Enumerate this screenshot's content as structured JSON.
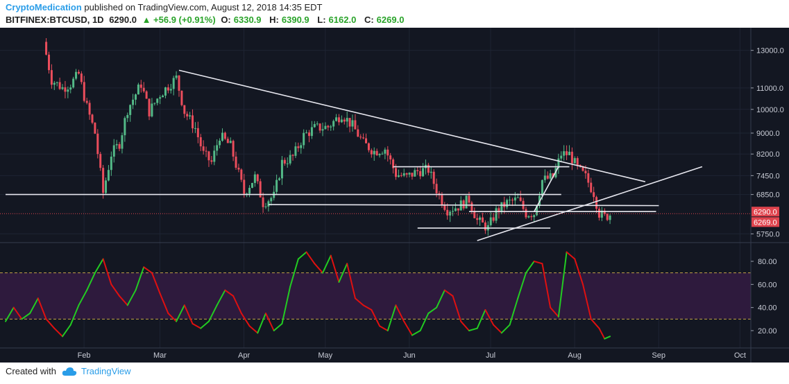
{
  "header": {
    "author": "CryptoMedication",
    "published_text": "published on TradingView.com, August 12, 2018 14:35 EDT",
    "symbol": "BITFINEX:BTCUSD, 1D",
    "last": "6290.0",
    "change": "▲ +56.9 (+0.91%)",
    "o_label": "O:",
    "o_value": "6330.9",
    "h_label": "H:",
    "h_value": "6390.9",
    "l_label": "L:",
    "l_value": "6162.0",
    "c_label": "C:",
    "c_value": "6269.0"
  },
  "footer": {
    "created_with": "Created with",
    "brand": "TradingView",
    "logo_icon": "cloud-logo-icon"
  },
  "colors": {
    "background": "#131722",
    "up": "#53b987",
    "down": "#eb4d5c",
    "trendline": "#e8e8f0",
    "rsi_up": "#22cc22",
    "rsi_down": "#e01010",
    "rsi_band": "#2e1a3d",
    "price_label": "#e0444e"
  },
  "chart_data": [
    {
      "type": "candlestick",
      "title": "BITFINEX:BTCUSD, 1D",
      "x_tick_labels": [
        "Feb",
        "Mar",
        "Apr",
        "May",
        "Jun",
        "Jul",
        "Aug",
        "Sep",
        "Oct"
      ],
      "y_scale": "log",
      "y_tick_labels": [
        "13000.0",
        "11000.0",
        "10000.0",
        "9000.0",
        "8200.0",
        "7450.0",
        "6850.0",
        "5750.0"
      ],
      "y_ticks": [
        13000,
        11000,
        10000,
        9000,
        8200,
        7450,
        6850,
        5750
      ],
      "ylim": [
        5600,
        14200
      ],
      "price_labels": [
        "6290.0",
        "6269.0"
      ],
      "price_label_values": [
        6290,
        6269
      ],
      "close_series": [
        {
          "date": "2018-01-15",
          "close": 13500
        },
        {
          "date": "2018-01-18",
          "close": 11400
        },
        {
          "date": "2018-01-22",
          "close": 11000
        },
        {
          "date": "2018-01-25",
          "close": 11200
        },
        {
          "date": "2018-01-28",
          "close": 11700
        },
        {
          "date": "2018-01-31",
          "close": 10100
        },
        {
          "date": "2018-02-03",
          "close": 9000
        },
        {
          "date": "2018-02-06",
          "close": 6900
        },
        {
          "date": "2018-02-09",
          "close": 8200
        },
        {
          "date": "2018-02-12",
          "close": 8600
        },
        {
          "date": "2018-02-15",
          "close": 10000
        },
        {
          "date": "2018-02-20",
          "close": 11200
        },
        {
          "date": "2018-02-23",
          "close": 9900
        },
        {
          "date": "2018-02-27",
          "close": 10700
        },
        {
          "date": "2018-03-05",
          "close": 11500
        },
        {
          "date": "2018-03-08",
          "close": 9900
        },
        {
          "date": "2018-03-12",
          "close": 9200
        },
        {
          "date": "2018-03-15",
          "close": 8200
        },
        {
          "date": "2018-03-18",
          "close": 7900
        },
        {
          "date": "2018-03-21",
          "close": 8900
        },
        {
          "date": "2018-03-25",
          "close": 8500
        },
        {
          "date": "2018-03-30",
          "close": 6900
        },
        {
          "date": "2018-04-03",
          "close": 7400
        },
        {
          "date": "2018-04-06",
          "close": 6600
        },
        {
          "date": "2018-04-10",
          "close": 6800
        },
        {
          "date": "2018-04-13",
          "close": 7900
        },
        {
          "date": "2018-04-17",
          "close": 8100
        },
        {
          "date": "2018-04-21",
          "close": 8900
        },
        {
          "date": "2018-04-25",
          "close": 9200
        },
        {
          "date": "2018-04-30",
          "close": 9250
        },
        {
          "date": "2018-05-05",
          "close": 9800
        },
        {
          "date": "2018-05-09",
          "close": 9300
        },
        {
          "date": "2018-05-13",
          "close": 8600
        },
        {
          "date": "2018-05-17",
          "close": 8300
        },
        {
          "date": "2018-05-21",
          "close": 8400
        },
        {
          "date": "2018-05-25",
          "close": 7500
        },
        {
          "date": "2018-05-29",
          "close": 7400
        },
        {
          "date": "2018-06-02",
          "close": 7600
        },
        {
          "date": "2018-06-06",
          "close": 7650
        },
        {
          "date": "2018-06-10",
          "close": 6800
        },
        {
          "date": "2018-06-13",
          "close": 6400
        },
        {
          "date": "2018-06-17",
          "close": 6500
        },
        {
          "date": "2018-06-21",
          "close": 6700
        },
        {
          "date": "2018-06-24",
          "close": 6100
        },
        {
          "date": "2018-06-28",
          "close": 5900
        },
        {
          "date": "2018-07-01",
          "close": 6350
        },
        {
          "date": "2018-07-05",
          "close": 6600
        },
        {
          "date": "2018-07-09",
          "close": 6700
        },
        {
          "date": "2018-07-12",
          "close": 6300
        },
        {
          "date": "2018-07-15",
          "close": 6300
        },
        {
          "date": "2018-07-18",
          "close": 7300
        },
        {
          "date": "2018-07-22",
          "close": 7400
        },
        {
          "date": "2018-07-25",
          "close": 8200
        },
        {
          "date": "2018-07-28",
          "close": 8200
        },
        {
          "date": "2018-07-31",
          "close": 7700
        },
        {
          "date": "2018-08-03",
          "close": 7400
        },
        {
          "date": "2018-08-06",
          "close": 6900
        },
        {
          "date": "2018-08-08",
          "close": 6300
        },
        {
          "date": "2018-08-10",
          "close": 6200
        },
        {
          "date": "2018-08-12",
          "close": 6269
        }
      ],
      "trendlines": [
        {
          "from": [
            "2018-03-06",
            11900
          ],
          "to": [
            "2018-08-25",
            7250
          ]
        },
        {
          "from": [
            "2018-01-01",
            6850
          ],
          "to": [
            "2018-07-25",
            6850
          ]
        },
        {
          "from": [
            "2018-04-08",
            6550
          ],
          "to": [
            "2018-08-30",
            6520
          ]
        },
        {
          "from": [
            "2018-05-24",
            7750
          ],
          "to": [
            "2018-07-28",
            7750
          ]
        },
        {
          "from": [
            "2018-06-21",
            6350
          ],
          "to": [
            "2018-08-29",
            6350
          ]
        },
        {
          "from": [
            "2018-06-02",
            5900
          ],
          "to": [
            "2018-07-21",
            5900
          ]
        },
        {
          "from": [
            "2018-06-24",
            5580
          ],
          "to": [
            "2018-09-15",
            7750
          ]
        },
        {
          "from": [
            "2018-07-15",
            6350
          ],
          "to": [
            "2018-07-24",
            7750
          ]
        }
      ]
    },
    {
      "type": "line",
      "title": "RSI",
      "x_tick_labels": [
        "Feb",
        "Mar",
        "Apr",
        "May",
        "Jun",
        "Jul",
        "Aug",
        "Sep",
        "Oct"
      ],
      "y_tick_labels": [
        "80.00",
        "60.00",
        "40.00",
        "20.00"
      ],
      "y_ticks": [
        80,
        60,
        40,
        20
      ],
      "ylim": [
        5,
        95
      ],
      "bands": [
        30,
        70
      ],
      "x": [
        "2018-01-01",
        "2018-01-04",
        "2018-01-07",
        "2018-01-10",
        "2018-01-13",
        "2018-01-16",
        "2018-01-19",
        "2018-01-22",
        "2018-01-25",
        "2018-01-28",
        "2018-01-31",
        "2018-02-03",
        "2018-02-06",
        "2018-02-09",
        "2018-02-12",
        "2018-02-15",
        "2018-02-18",
        "2018-02-21",
        "2018-02-24",
        "2018-02-27",
        "2018-03-02",
        "2018-03-05",
        "2018-03-08",
        "2018-03-11",
        "2018-03-14",
        "2018-03-17",
        "2018-03-20",
        "2018-03-23",
        "2018-03-26",
        "2018-03-29",
        "2018-04-01",
        "2018-04-04",
        "2018-04-07",
        "2018-04-10",
        "2018-04-13",
        "2018-04-16",
        "2018-04-19",
        "2018-04-22",
        "2018-04-25",
        "2018-04-28",
        "2018-05-01",
        "2018-05-04",
        "2018-05-07",
        "2018-05-10",
        "2018-05-13",
        "2018-05-16",
        "2018-05-19",
        "2018-05-22",
        "2018-05-25",
        "2018-05-28",
        "2018-05-31",
        "2018-06-03",
        "2018-06-06",
        "2018-06-09",
        "2018-06-12",
        "2018-06-15",
        "2018-06-18",
        "2018-06-21",
        "2018-06-24",
        "2018-06-27",
        "2018-06-30",
        "2018-07-03",
        "2018-07-06",
        "2018-07-09",
        "2018-07-12",
        "2018-07-15",
        "2018-07-18",
        "2018-07-21",
        "2018-07-24",
        "2018-07-27",
        "2018-07-30",
        "2018-08-02",
        "2018-08-05",
        "2018-08-08",
        "2018-08-10",
        "2018-08-12"
      ],
      "series": [
        {
          "values": [
            28,
            40,
            30,
            35,
            48,
            30,
            22,
            15,
            25,
            42,
            55,
            70,
            82,
            60,
            50,
            42,
            55,
            75,
            70,
            52,
            35,
            28,
            42,
            26,
            22,
            28,
            42,
            55,
            50,
            35,
            24,
            18,
            35,
            20,
            26,
            58,
            82,
            88,
            78,
            70,
            85,
            62,
            78,
            48,
            42,
            38,
            24,
            20,
            42,
            28,
            16,
            20,
            35,
            40,
            55,
            50,
            28,
            20,
            22,
            38,
            25,
            18,
            25,
            48,
            70,
            80,
            78,
            40,
            32,
            88,
            82,
            60,
            30,
            22,
            13,
            15
          ]
        }
      ],
      "series_up_down": true
    }
  ]
}
